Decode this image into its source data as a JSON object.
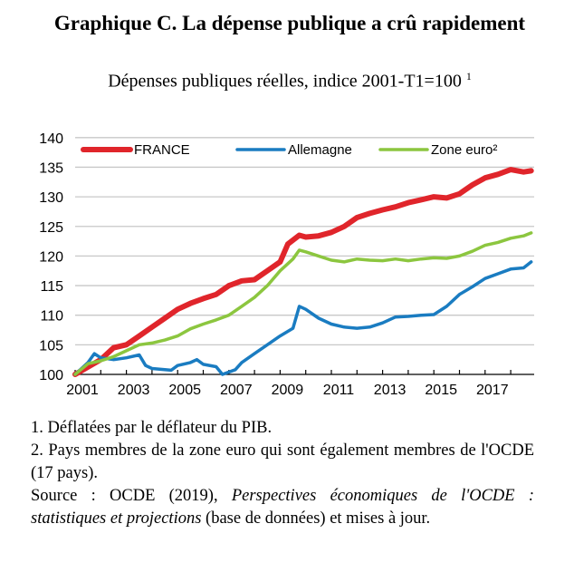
{
  "title": "Graphique C. La dépense publique a crû rapidement",
  "subtitle": "Dépenses publiques réelles, indice 2001-T1=100",
  "subtitle_note": "1",
  "notes": [
    "1. Déflatées par le déflateur du PIB.",
    "2. Pays membres de la zone euro qui sont également membres de l'OCDE (17 pays)."
  ],
  "source": {
    "prefix": "Source : OCDE (2019), ",
    "italic": "Perspectives économiques de l'OCDE : statistiques et projections",
    "suffix": " (base de données) et mises à jour."
  },
  "chart_data": {
    "type": "line",
    "title": "Graphique C. La dépense publique a crû rapidement",
    "ylabel": "",
    "xlabel": "",
    "ylim": [
      100,
      140
    ],
    "xlim": [
      2001,
      2018.9
    ],
    "yticks": [
      100,
      105,
      110,
      115,
      120,
      125,
      130,
      135,
      140
    ],
    "xtick_labels": [
      "2001",
      "2003",
      "2005",
      "2007",
      "2009",
      "2011",
      "2013",
      "2015",
      "2017"
    ],
    "grid": true,
    "legend_position": "top",
    "series": [
      {
        "name": "FRANCE",
        "color": "#e0252b",
        "x": [
          2001,
          2002,
          2002.5,
          2003,
          2003.5,
          2004,
          2004.5,
          2005,
          2005.5,
          2006,
          2006.5,
          2007,
          2007.5,
          2008,
          2008.5,
          2009,
          2009.3,
          2009.75,
          2010,
          2010.5,
          2011,
          2011.5,
          2012,
          2012.5,
          2013,
          2013.5,
          2014,
          2014.5,
          2015,
          2015.5,
          2016,
          2016.5,
          2017,
          2017.5,
          2018,
          2018.5,
          2018.8
        ],
        "y": [
          100,
          102.5,
          104.5,
          105,
          106.5,
          108,
          109.5,
          111,
          112,
          112.8,
          113.5,
          115,
          115.8,
          116,
          117.5,
          119,
          122,
          123.5,
          123.2,
          123.4,
          124,
          125,
          126.5,
          127.2,
          127.8,
          128.3,
          129,
          129.5,
          130,
          129.8,
          130.5,
          132,
          133.2,
          133.8,
          134.6,
          134.2,
          134.4
        ]
      },
      {
        "name": "Allemagne",
        "color": "#1a7cc1",
        "x": [
          2001,
          2001.5,
          2001.75,
          2002,
          2002.5,
          2003,
          2003.5,
          2003.75,
          2004,
          2004.75,
          2005,
          2005.5,
          2005.75,
          2006,
          2006.5,
          2006.75,
          2007.25,
          2007.5,
          2008,
          2008.5,
          2009,
          2009.5,
          2009.75,
          2010,
          2010.5,
          2011,
          2011.5,
          2012,
          2012.5,
          2013,
          2013.5,
          2014,
          2014.5,
          2015,
          2015.5,
          2016,
          2016.5,
          2017,
          2017.5,
          2018,
          2018.5,
          2018.8
        ],
        "y": [
          100,
          102,
          103.5,
          102.8,
          102.5,
          102.8,
          103.3,
          101.5,
          101,
          100.7,
          101.5,
          102,
          102.5,
          101.7,
          101.3,
          100,
          100.8,
          102,
          103.5,
          105,
          106.5,
          107.8,
          111.5,
          111,
          109.5,
          108.5,
          108,
          107.8,
          108,
          108.7,
          109.7,
          109.8,
          110,
          110.1,
          111.5,
          113.5,
          114.8,
          116.2,
          117,
          117.8,
          118,
          119
        ]
      },
      {
        "name": "Zone euro²",
        "color": "#8cc63f",
        "x": [
          2001,
          2001.5,
          2002,
          2002.5,
          2003,
          2003.5,
          2004,
          2004.5,
          2005,
          2005.5,
          2006,
          2006.5,
          2007,
          2007.5,
          2008,
          2008.5,
          2009,
          2009.5,
          2009.75,
          2010,
          2010.5,
          2011,
          2011.5,
          2012,
          2012.5,
          2013,
          2013.5,
          2014,
          2014.5,
          2015,
          2015.5,
          2016,
          2016.5,
          2017,
          2017.5,
          2018,
          2018.5,
          2018.8
        ],
        "y": [
          100,
          101.8,
          102.3,
          103,
          104,
          105,
          105.3,
          105.8,
          106.5,
          107.7,
          108.5,
          109.2,
          110,
          111.5,
          113,
          115,
          117.5,
          119.5,
          121,
          120.7,
          120,
          119.3,
          119,
          119.5,
          119.3,
          119.2,
          119.5,
          119.2,
          119.5,
          119.7,
          119.6,
          120,
          120.8,
          121.8,
          122.3,
          123,
          123.4,
          123.9
        ]
      }
    ]
  }
}
